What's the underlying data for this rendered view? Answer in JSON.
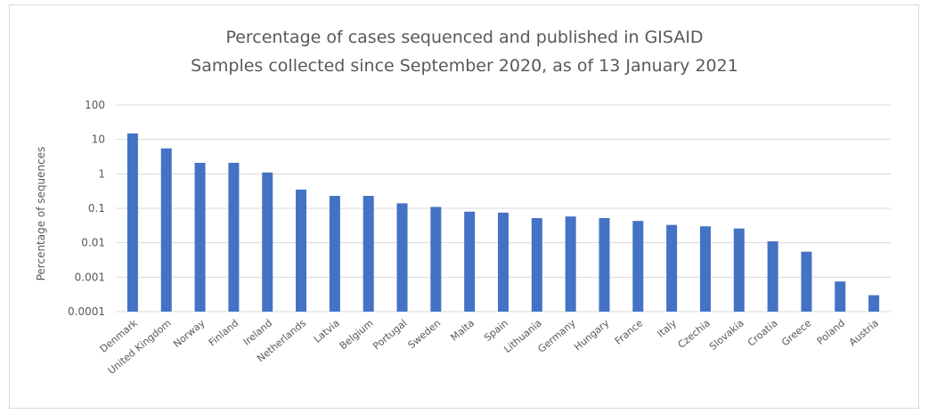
{
  "chart_data": {
    "type": "bar",
    "title": "Percentage of cases sequenced and published in GISAID",
    "subtitle": "Samples collected since September 2020, as of 13 January 2021",
    "ylabel": "Percentage of sequences",
    "xlabel": "",
    "yscale": "log",
    "ylim": [
      0.0001,
      100
    ],
    "yticks": [
      "100",
      "10",
      "1",
      "0.1",
      "0.01",
      "0.001",
      "0.0001"
    ],
    "grid": true,
    "bar_color": "#4472c4",
    "categories": [
      "Denmark",
      "United Kingdom",
      "Norway",
      "Finland",
      "Ireland",
      "Netherlands",
      "Latvia",
      "Belgium",
      "Portugal",
      "Sweden",
      "Malta",
      "Spain",
      "Lithuania",
      "Germany",
      "Hungary",
      "France",
      "Italy",
      "Czechia",
      "Slovakia",
      "Croatia",
      "Greece",
      "Poland",
      "Austria"
    ],
    "values": [
      15,
      5.5,
      2.1,
      2.1,
      1.1,
      0.35,
      0.23,
      0.23,
      0.14,
      0.11,
      0.08,
      0.075,
      0.052,
      0.058,
      0.052,
      0.043,
      0.033,
      0.03,
      0.026,
      0.011,
      0.0055,
      0.00075,
      0.0003
    ]
  }
}
